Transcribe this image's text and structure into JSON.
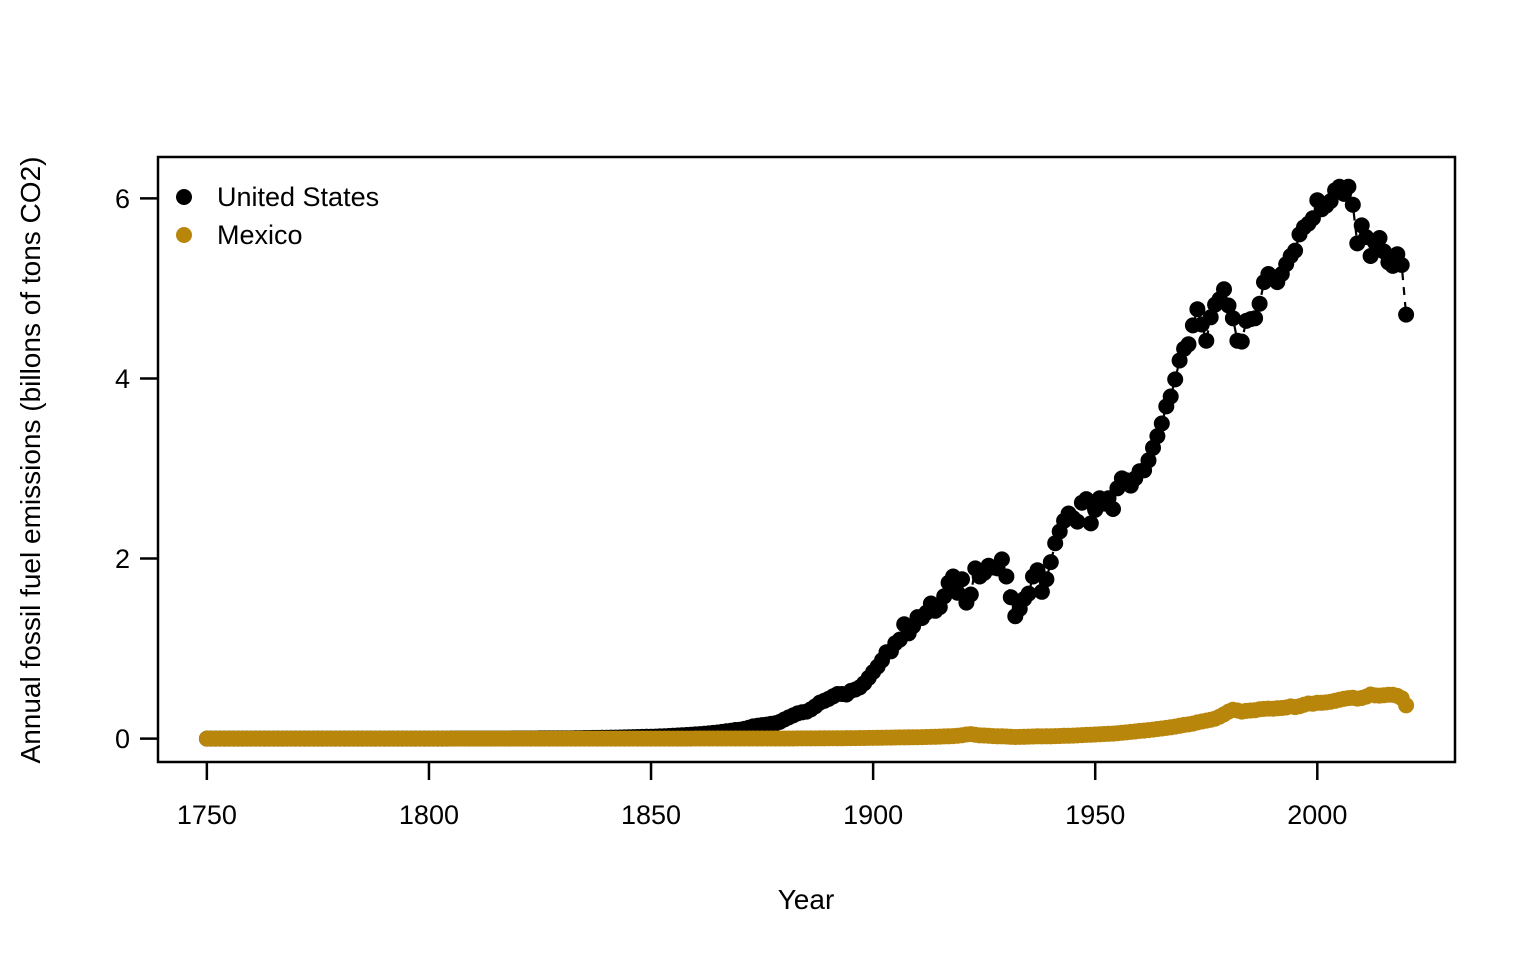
{
  "chart_data": {
    "type": "scatter",
    "title": "",
    "xlabel": "Year",
    "ylabel": "Annual fossil fuel emissions (billons of tons CO2)",
    "x_ticks": [
      1750,
      1800,
      1850,
      1900,
      1950,
      2000
    ],
    "y_ticks": [
      0,
      2,
      4,
      6
    ],
    "xlim": [
      1739,
      2031
    ],
    "ylim": [
      -0.26,
      6.46
    ],
    "grid": false,
    "legend_position": "top-left",
    "marker": "filled-circle",
    "line_style": "dashed",
    "axis_color": "#000000",
    "series": [
      {
        "name": "United States",
        "color": "#000000",
        "start_year": 1750,
        "end_year": 2020,
        "annual_values": [
          0.0001,
          0.0001,
          0.0001,
          0.0001,
          0.0001,
          0.0001,
          0.0001,
          0.0001,
          0.0001,
          0.0001,
          0.0001,
          0.0001,
          0.0001,
          0.0001,
          0.0001,
          0.0001,
          0.0001,
          0.0001,
          0.0001,
          0.0001,
          0.0002,
          0.0002,
          0.0002,
          0.0002,
          0.0002,
          0.0002,
          0.0002,
          0.0002,
          0.0002,
          0.0002,
          0.0002,
          0.0002,
          0.0002,
          0.0002,
          0.0002,
          0.0002,
          0.0002,
          0.0002,
          0.0002,
          0.0002,
          0.0003,
          0.0003,
          0.0003,
          0.0003,
          0.0003,
          0.0003,
          0.0003,
          0.0003,
          0.0003,
          0.0003,
          0.0003,
          0.0003,
          0.0004,
          0.0004,
          0.0004,
          0.0005,
          0.0005,
          0.0006,
          0.0006,
          0.0007,
          0.0008,
          0.0008,
          0.0009,
          0.001,
          0.0011,
          0.0012,
          0.0013,
          0.0014,
          0.0015,
          0.0016,
          0.0018,
          0.0019,
          0.0021,
          0.0023,
          0.0025,
          0.0027,
          0.0029,
          0.0032,
          0.0035,
          0.0038,
          0.0041,
          0.0045,
          0.0049,
          0.0053,
          0.0058,
          0.0063,
          0.0069,
          0.0075,
          0.0082,
          0.0089,
          0.0097,
          0.0106,
          0.0115,
          0.0126,
          0.0137,
          0.0149,
          0.0163,
          0.0177,
          0.0193,
          0.0199,
          0.02,
          0.022,
          0.024,
          0.026,
          0.029,
          0.031,
          0.034,
          0.037,
          0.04,
          0.043,
          0.047,
          0.05,
          0.053,
          0.058,
          0.063,
          0.068,
          0.074,
          0.081,
          0.088,
          0.095,
          0.098,
          0.108,
          0.12,
          0.135,
          0.142,
          0.15,
          0.155,
          0.163,
          0.17,
          0.185,
          0.212,
          0.235,
          0.258,
          0.28,
          0.292,
          0.3,
          0.325,
          0.36,
          0.4,
          0.42,
          0.442,
          0.47,
          0.495,
          0.495,
          0.49,
          0.53,
          0.545,
          0.57,
          0.615,
          0.675,
          0.74,
          0.8,
          0.87,
          0.96,
          0.97,
          1.06,
          1.1,
          1.27,
          1.17,
          1.25,
          1.35,
          1.34,
          1.4,
          1.5,
          1.42,
          1.46,
          1.58,
          1.73,
          1.8,
          1.62,
          1.77,
          1.51,
          1.6,
          1.89,
          1.8,
          1.84,
          1.92,
          1.9,
          1.89,
          1.99,
          1.8,
          1.57,
          1.36,
          1.44,
          1.55,
          1.61,
          1.8,
          1.87,
          1.63,
          1.77,
          1.96,
          2.17,
          2.3,
          2.42,
          2.5,
          2.45,
          2.41,
          2.62,
          2.66,
          2.39,
          2.54,
          2.67,
          2.61,
          2.67,
          2.55,
          2.78,
          2.89,
          2.87,
          2.81,
          2.89,
          2.97,
          2.98,
          3.09,
          3.23,
          3.36,
          3.5,
          3.69,
          3.8,
          3.99,
          4.2,
          4.33,
          4.38,
          4.59,
          4.77,
          4.6,
          4.42,
          4.68,
          4.82,
          4.88,
          4.99,
          4.81,
          4.67,
          4.42,
          4.41,
          4.64,
          4.66,
          4.67,
          4.83,
          5.07,
          5.16,
          5.12,
          5.07,
          5.16,
          5.27,
          5.36,
          5.42,
          5.6,
          5.68,
          5.72,
          5.78,
          5.98,
          5.88,
          5.92,
          5.97,
          6.09,
          6.13,
          6.05,
          6.13,
          5.93,
          5.5,
          5.7,
          5.57,
          5.36,
          5.51,
          5.56,
          5.41,
          5.29,
          5.25,
          5.38,
          5.26,
          4.71
        ]
      },
      {
        "name": "Mexico",
        "color": "#B8860B",
        "start_year": 1750,
        "end_year": 2020,
        "annual_values": [
          0,
          0,
          0,
          0,
          0,
          0,
          0,
          0,
          0,
          0,
          0,
          0,
          0,
          0,
          0,
          0,
          0,
          0,
          0,
          0,
          0,
          0,
          0,
          0,
          0,
          0,
          0,
          0,
          0,
          0,
          0,
          0,
          0,
          0,
          0,
          0,
          0,
          0,
          0,
          0,
          0,
          0,
          0,
          0,
          0,
          0,
          0,
          0,
          0,
          0,
          0,
          0,
          0,
          0,
          0,
          0,
          0,
          0,
          0,
          0,
          0,
          0,
          0,
          0,
          0,
          0,
          0,
          0,
          0,
          0,
          0,
          0,
          0,
          0,
          0,
          0,
          0,
          0,
          0,
          0,
          0,
          0,
          0,
          0,
          0,
          0,
          0,
          0,
          0,
          0,
          0,
          0,
          0,
          0,
          0,
          0,
          0,
          0,
          0,
          0,
          0,
          0,
          0,
          0,
          0,
          0,
          0,
          0,
          0,
          0,
          0.001,
          0.001,
          0.001,
          0.001,
          0.001,
          0.001,
          0.001,
          0.001,
          0.001,
          0.001,
          0.001,
          0.001,
          0.001,
          0.001,
          0.001,
          0.001,
          0.001,
          0.001,
          0.001,
          0.001,
          0.001,
          0.0012,
          0.0014,
          0.0016,
          0.0018,
          0.002,
          0.0022,
          0.0025,
          0.003,
          0.0035,
          0.004,
          0.004,
          0.004,
          0.0045,
          0.005,
          0.0055,
          0.006,
          0.0065,
          0.007,
          0.0075,
          0.008,
          0.009,
          0.01,
          0.0105,
          0.011,
          0.012,
          0.013,
          0.0135,
          0.014,
          0.015,
          0.016,
          0.017,
          0.018,
          0.019,
          0.02,
          0.022,
          0.024,
          0.026,
          0.028,
          0.032,
          0.038,
          0.046,
          0.05,
          0.043,
          0.036,
          0.034,
          0.032,
          0.028,
          0.025,
          0.025,
          0.023,
          0.02,
          0.018,
          0.019,
          0.02,
          0.022,
          0.023,
          0.025,
          0.024,
          0.025,
          0.026,
          0.028,
          0.029,
          0.031,
          0.032,
          0.033,
          0.036,
          0.039,
          0.041,
          0.043,
          0.046,
          0.049,
          0.051,
          0.053,
          0.056,
          0.06,
          0.065,
          0.069,
          0.074,
          0.079,
          0.085,
          0.089,
          0.094,
          0.1,
          0.107,
          0.112,
          0.119,
          0.125,
          0.133,
          0.142,
          0.152,
          0.158,
          0.167,
          0.18,
          0.19,
          0.2,
          0.21,
          0.222,
          0.244,
          0.27,
          0.3,
          0.32,
          0.312,
          0.3,
          0.308,
          0.312,
          0.315,
          0.327,
          0.33,
          0.333,
          0.332,
          0.336,
          0.34,
          0.345,
          0.358,
          0.35,
          0.36,
          0.376,
          0.39,
          0.388,
          0.398,
          0.398,
          0.402,
          0.41,
          0.42,
          0.432,
          0.442,
          0.45,
          0.453,
          0.444,
          0.451,
          0.466,
          0.49,
          0.48,
          0.478,
          0.482,
          0.488,
          0.486,
          0.474,
          0.449,
          0.37
        ]
      }
    ]
  }
}
